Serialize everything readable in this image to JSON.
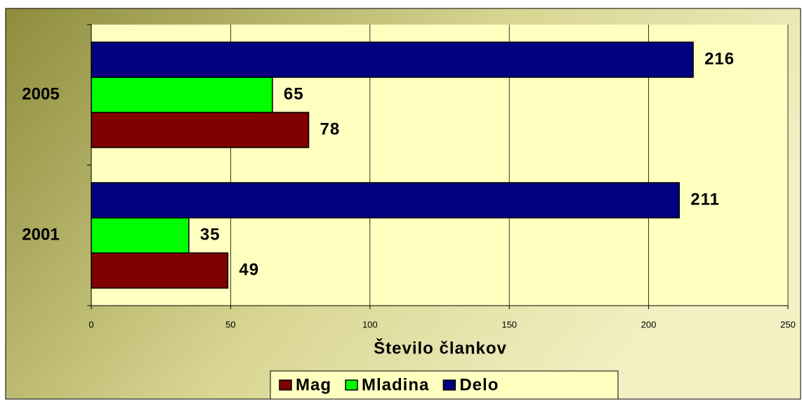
{
  "chart_data": {
    "type": "hbar",
    "categories": [
      "2001",
      "2005"
    ],
    "series": [
      {
        "name": "Mag",
        "color": "#800000",
        "values": [
          49,
          78
        ]
      },
      {
        "name": "Mladina",
        "color": "#00ff00",
        "values": [
          35,
          65
        ]
      },
      {
        "name": "Delo",
        "color": "#000080",
        "values": [
          211,
          216
        ]
      }
    ],
    "x_label": "Število člankov",
    "xlim": [
      0,
      250
    ],
    "xticks": [
      0,
      50,
      100,
      150,
      200,
      250
    ],
    "grid": true,
    "legend": "bottom"
  }
}
